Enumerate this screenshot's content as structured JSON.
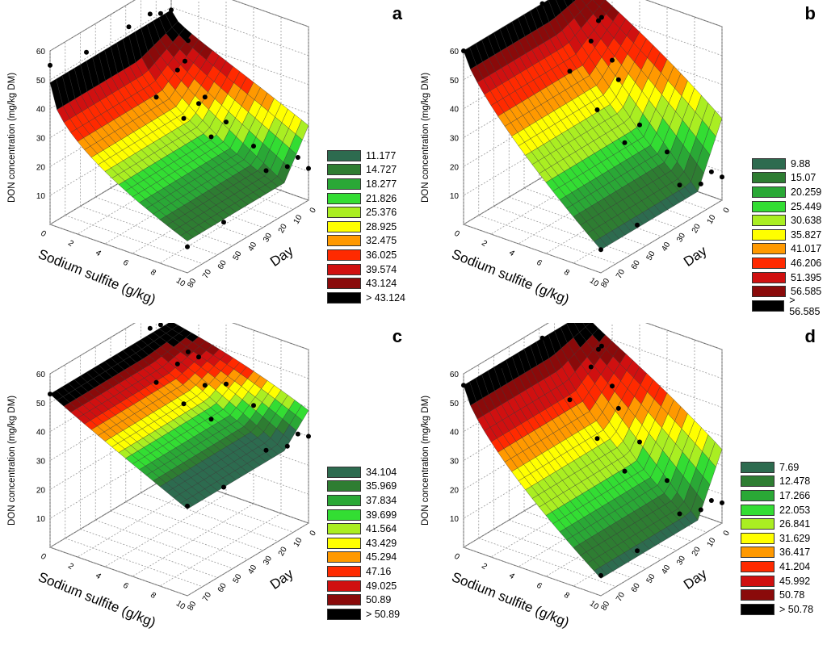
{
  "panels": [
    {
      "letter": "a",
      "z_label": "DON concentration (mg/kg DM)",
      "x_label": "Sodium sulfite (g/kg)",
      "y_label": "Day",
      "legend": [
        "11.177",
        "14.727",
        "18.277",
        "21.826",
        "25.376",
        "28.925",
        "32.475",
        "36.025",
        "39.574",
        "43.124",
        "> 43.124"
      ]
    },
    {
      "letter": "b",
      "z_label": "DON concentration (mg/kg DM)",
      "x_label": "Sodium sulfite (g/kg)",
      "y_label": "Day",
      "legend": [
        "9.88",
        "15.07",
        "20.259",
        "25.449",
        "30.638",
        "35.827",
        "41.017",
        "46.206",
        "51.395",
        "56.585",
        "> 56.585"
      ]
    },
    {
      "letter": "c",
      "z_label": "DON concentration (mg/kg DM)",
      "x_label": "Sodium sulfite (g/kg)",
      "y_label": "Day",
      "legend": [
        "34.104",
        "35.969",
        "37.834",
        "39.699",
        "41.564",
        "43.429",
        "45.294",
        "47.16",
        "49.025",
        "50.89",
        "> 50.89"
      ]
    },
    {
      "letter": "d",
      "z_label": "DON concentration (mg/kg DM)",
      "x_label": "Sodium sulfite (g/kg)",
      "y_label": "Day",
      "legend": [
        "7.69",
        "12.478",
        "17.266",
        "22.053",
        "26.841",
        "31.629",
        "36.417",
        "41.204",
        "45.992",
        "50.78",
        "> 50.78"
      ]
    }
  ],
  "colors": {
    "legend_scale": [
      "#2d6b4f",
      "#2e7d32",
      "#2aa836",
      "#33dd33",
      "#aaee22",
      "#ffff00",
      "#ff9900",
      "#ff2a00",
      "#d01010",
      "#8a0a0a",
      "#000000"
    ]
  },
  "chart_data": [
    {
      "type": "surface3d",
      "title": "a",
      "x": {
        "label": "Sodium sulfite (g/kg)",
        "range": [
          0,
          10
        ],
        "ticks": [
          0,
          2,
          4,
          6,
          8,
          10
        ]
      },
      "y": {
        "label": "Day",
        "range": [
          0,
          80
        ],
        "ticks": [
          0,
          10,
          20,
          30,
          40,
          50,
          60,
          70,
          80
        ]
      },
      "z": {
        "label": "DON concentration (mg/kg DM)",
        "range": [
          0,
          60
        ],
        "ticks": [
          10,
          20,
          30,
          40,
          50,
          60
        ]
      },
      "surface_model": {
        "base": 49,
        "sulfite_drop": 38,
        "sulfite_curve": 0.5,
        "day_rise": 1.0
      },
      "legend_levels": [
        11.177,
        14.727,
        18.277,
        21.826,
        25.376,
        28.925,
        32.475,
        36.025,
        39.574,
        43.124
      ],
      "points": [
        [
          0,
          0,
          49
        ],
        [
          1,
          0,
          33
        ],
        [
          2,
          0,
          20
        ],
        [
          4,
          0,
          17
        ],
        [
          6,
          0,
          12
        ],
        [
          10,
          0,
          11
        ],
        [
          0,
          7,
          50
        ],
        [
          0,
          14,
          52
        ],
        [
          0,
          28,
          52
        ],
        [
          0,
          56,
          52
        ],
        [
          0,
          80,
          55
        ],
        [
          2,
          7,
          44
        ],
        [
          2,
          14,
          36
        ],
        [
          2,
          28,
          31
        ],
        [
          4,
          14,
          30
        ],
        [
          4,
          28,
          27
        ],
        [
          6,
          28,
          24
        ],
        [
          10,
          7,
          17
        ],
        [
          10,
          14,
          16
        ],
        [
          10,
          28,
          19
        ],
        [
          10,
          56,
          10
        ],
        [
          10,
          80,
          9
        ]
      ]
    },
    {
      "type": "surface3d",
      "title": "b",
      "x": {
        "label": "Sodium sulfite (g/kg)",
        "range": [
          0,
          10
        ],
        "ticks": [
          0,
          2,
          4,
          6,
          8,
          10
        ]
      },
      "y": {
        "label": "Day",
        "range": [
          0,
          80
        ],
        "ticks": [
          0,
          10,
          20,
          30,
          40,
          50,
          60,
          70,
          80
        ]
      },
      "z": {
        "label": "DON concentration (mg/kg DM)",
        "range": [
          0,
          60
        ],
        "ticks": [
          10,
          20,
          30,
          40,
          50,
          60
        ]
      },
      "surface_model": {
        "base": 60,
        "sulfite_drop": 52,
        "sulfite_curve": 0.75,
        "day_rise": 0.9
      },
      "legend_levels": [
        9.88,
        15.07,
        20.259,
        25.449,
        30.638,
        35.827,
        41.017,
        46.206,
        51.395,
        56.585
      ],
      "points": [
        [
          0,
          0,
          60
        ],
        [
          1,
          0,
          47
        ],
        [
          2,
          0,
          35
        ],
        [
          4,
          0,
          16
        ],
        [
          6,
          0,
          10
        ],
        [
          10,
          0,
          8
        ],
        [
          0,
          7,
          61
        ],
        [
          0,
          14,
          62
        ],
        [
          0,
          28,
          60
        ],
        [
          0,
          56,
          57
        ],
        [
          0,
          80,
          60
        ],
        [
          2,
          7,
          52
        ],
        [
          2,
          14,
          46
        ],
        [
          2,
          28,
          40
        ],
        [
          4,
          14,
          36
        ],
        [
          4,
          28,
          30
        ],
        [
          6,
          28,
          22
        ],
        [
          10,
          7,
          12
        ],
        [
          10,
          14,
          10
        ],
        [
          10,
          28,
          14
        ],
        [
          10,
          56,
          9
        ],
        [
          10,
          80,
          8
        ]
      ]
    },
    {
      "type": "surface3d",
      "title": "c",
      "x": {
        "label": "Sodium sulfite (g/kg)",
        "range": [
          0,
          10
        ],
        "ticks": [
          0,
          2,
          4,
          6,
          8,
          10
        ]
      },
      "y": {
        "label": "Day",
        "range": [
          0,
          80
        ],
        "ticks": [
          0,
          10,
          20,
          30,
          40,
          50,
          60,
          70,
          80
        ]
      },
      "z": {
        "label": "DON concentration (mg/kg DM)",
        "range": [
          0,
          60
        ],
        "ticks": [
          10,
          20,
          30,
          40,
          50,
          60
        ]
      },
      "surface_model": {
        "base": 53,
        "sulfite_drop": 23,
        "sulfite_curve": 0.95,
        "day_rise": 0.6
      },
      "legend_levels": [
        34.104,
        35.969,
        37.834,
        39.699,
        41.564,
        43.429,
        45.294,
        47.16,
        49.025,
        50.89
      ],
      "points": [
        [
          0,
          0,
          53
        ],
        [
          1,
          0,
          50
        ],
        [
          2,
          0,
          44
        ],
        [
          4,
          0,
          38
        ],
        [
          6,
          0,
          34
        ],
        [
          10,
          0,
          30
        ],
        [
          0,
          7,
          54
        ],
        [
          0,
          14,
          55
        ],
        [
          0,
          28,
          52
        ],
        [
          0,
          56,
          51
        ],
        [
          0,
          80,
          53
        ],
        [
          2,
          7,
          48
        ],
        [
          2,
          14,
          46
        ],
        [
          2,
          28,
          44
        ],
        [
          4,
          14,
          42
        ],
        [
          4,
          28,
          40
        ],
        [
          6,
          28,
          38
        ],
        [
          10,
          7,
          33
        ],
        [
          10,
          14,
          31
        ],
        [
          10,
          28,
          34
        ],
        [
          10,
          56,
          30
        ],
        [
          10,
          80,
          31
        ]
      ]
    },
    {
      "type": "surface3d",
      "title": "d",
      "x": {
        "label": "Sodium sulfite (g/kg)",
        "range": [
          0,
          10
        ],
        "ticks": [
          0,
          2,
          4,
          6,
          8,
          10
        ]
      },
      "y": {
        "label": "Day",
        "range": [
          0,
          80
        ],
        "ticks": [
          0,
          10,
          20,
          30,
          40,
          50,
          60,
          70,
          80
        ]
      },
      "z": {
        "label": "DON concentration (mg/kg DM)",
        "range": [
          0,
          60
        ],
        "ticks": [
          10,
          20,
          30,
          40,
          50,
          60
        ]
      },
      "surface_model": {
        "base": 56,
        "sulfite_drop": 50,
        "sulfite_curve": 0.7,
        "day_rise": 0.9
      },
      "legend_levels": [
        7.69,
        12.478,
        17.266,
        22.053,
        26.841,
        31.629,
        36.417,
        41.204,
        45.992,
        50.78
      ],
      "points": [
        [
          0,
          0,
          56
        ],
        [
          1,
          0,
          45
        ],
        [
          2,
          0,
          34
        ],
        [
          4,
          0,
          18
        ],
        [
          6,
          0,
          8
        ],
        [
          10,
          0,
          7
        ],
        [
          0,
          7,
          57
        ],
        [
          0,
          14,
          58
        ],
        [
          0,
          28,
          56
        ],
        [
          0,
          56,
          55
        ],
        [
          0,
          80,
          56
        ],
        [
          2,
          7,
          50
        ],
        [
          2,
          14,
          45
        ],
        [
          2,
          28,
          38
        ],
        [
          4,
          14,
          34
        ],
        [
          4,
          28,
          28
        ],
        [
          6,
          28,
          20
        ],
        [
          10,
          7,
          10
        ],
        [
          10,
          14,
          9
        ],
        [
          10,
          28,
          12
        ],
        [
          10,
          56,
          8
        ],
        [
          10,
          80,
          7
        ]
      ]
    }
  ]
}
